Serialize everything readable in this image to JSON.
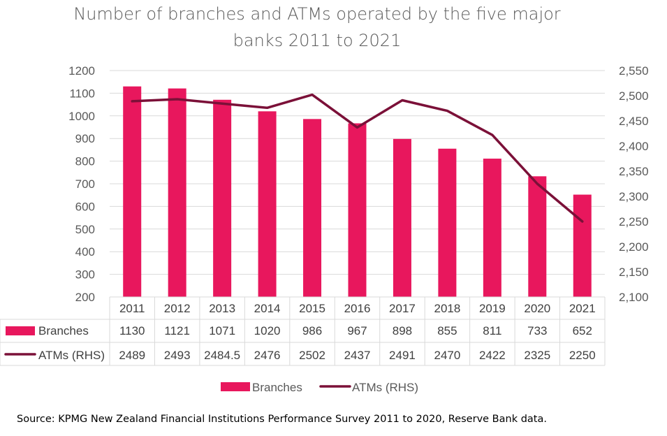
{
  "title_line1": "Number of branches and ATMs operated by the five major",
  "title_line2": "banks 2011 to 2021",
  "source": "Source: KPMG New Zealand Financial Institutions Performance Survey 2011 to 2020, Reserve Bank data.",
  "colors": {
    "branches": "#e8175d",
    "atms": "#7b1038",
    "grid": "#d9d9d9"
  },
  "chart_data": {
    "type": "bar",
    "categories": [
      "2011",
      "2012",
      "2013",
      "2014",
      "2015",
      "2016",
      "2017",
      "2018",
      "2019",
      "2020",
      "2021"
    ],
    "series": [
      {
        "name": "Branches",
        "type": "bar",
        "axis": "left",
        "values": [
          1130,
          1121,
          1071,
          1020,
          986,
          967,
          898,
          855,
          811,
          733,
          652
        ],
        "table_values": [
          "1130",
          "1121",
          "1071",
          "1020",
          "986",
          "967",
          "898",
          "855",
          "811",
          "733",
          "652"
        ]
      },
      {
        "name": "ATMs (RHS)",
        "type": "line",
        "axis": "right",
        "values": [
          2489,
          2493,
          2484.5,
          2476,
          2502,
          2437,
          2491,
          2470,
          2422,
          2325,
          2250
        ],
        "table_values": [
          "2489",
          "2493",
          "2484.5",
          "2476",
          "2502",
          "2437",
          "2491",
          "2470",
          "2422",
          "2325",
          "2250"
        ]
      }
    ],
    "y_left": {
      "lim": [
        200,
        1200
      ],
      "ticks": [
        "200",
        "300",
        "400",
        "500",
        "600",
        "700",
        "800",
        "900",
        "1000",
        "1100",
        "1200"
      ],
      "values": [
        200,
        300,
        400,
        500,
        600,
        700,
        800,
        900,
        1000,
        1100,
        1200
      ]
    },
    "y_right": {
      "lim": [
        2100,
        2550
      ],
      "ticks": [
        "2,100",
        "2,150",
        "2,200",
        "2,250",
        "2,300",
        "2,350",
        "2,400",
        "2,450",
        "2,500",
        "2,550"
      ],
      "values": [
        2100,
        2150,
        2200,
        2250,
        2300,
        2350,
        2400,
        2450,
        2500,
        2550
      ]
    },
    "grid": true,
    "data_table": true,
    "legend": {
      "position": "bottom",
      "entries": [
        "Branches",
        "ATMs (RHS)"
      ]
    }
  }
}
